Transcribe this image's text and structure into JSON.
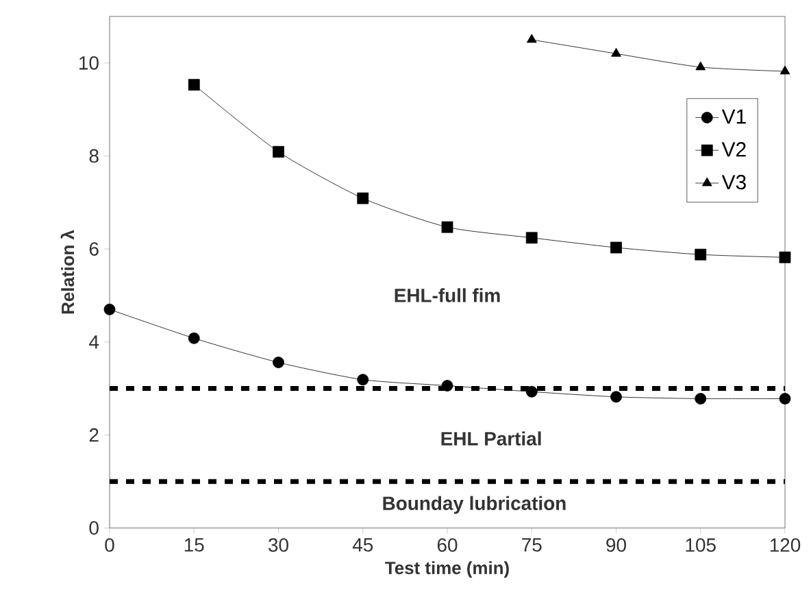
{
  "chart_data": {
    "type": "line",
    "xlabel": "Test time (min)",
    "ylabel": "Relation λ",
    "x": [
      0,
      15,
      30,
      45,
      60,
      75,
      90,
      105,
      120
    ],
    "series": [
      {
        "name": "V1",
        "color": "#000000",
        "marker": "circle",
        "values": [
          4.7,
          4.08,
          3.56,
          3.19,
          3.06,
          2.93,
          2.82,
          2.78,
          2.78
        ]
      },
      {
        "name": "V2",
        "color": "#000000",
        "marker": "square",
        "values": [
          null,
          9.53,
          8.09,
          7.09,
          6.47,
          6.24,
          6.03,
          5.88,
          5.82
        ]
      },
      {
        "name": "V3",
        "color": "#000000",
        "marker": "triangle",
        "values": [
          null,
          null,
          null,
          null,
          null,
          10.5,
          10.2,
          9.91,
          9.82
        ]
      }
    ],
    "xlim": [
      0,
      120
    ],
    "xticks": [
      0,
      15,
      30,
      45,
      60,
      75,
      90,
      105,
      120
    ],
    "ylim": [
      0,
      11
    ],
    "yticks": [
      0,
      2,
      4,
      6,
      8,
      10
    ],
    "ref_lines": [
      {
        "axis": "y",
        "value": 3,
        "line_style": "dashed",
        "color": "#000000"
      },
      {
        "axis": "y",
        "value": 1,
        "line_style": "dashed",
        "color": "#000000"
      }
    ],
    "annotations": [
      "EHL-full fim",
      "EHL Partial",
      "Bounday lubrication"
    ],
    "legend": "top right",
    "grid": false
  }
}
